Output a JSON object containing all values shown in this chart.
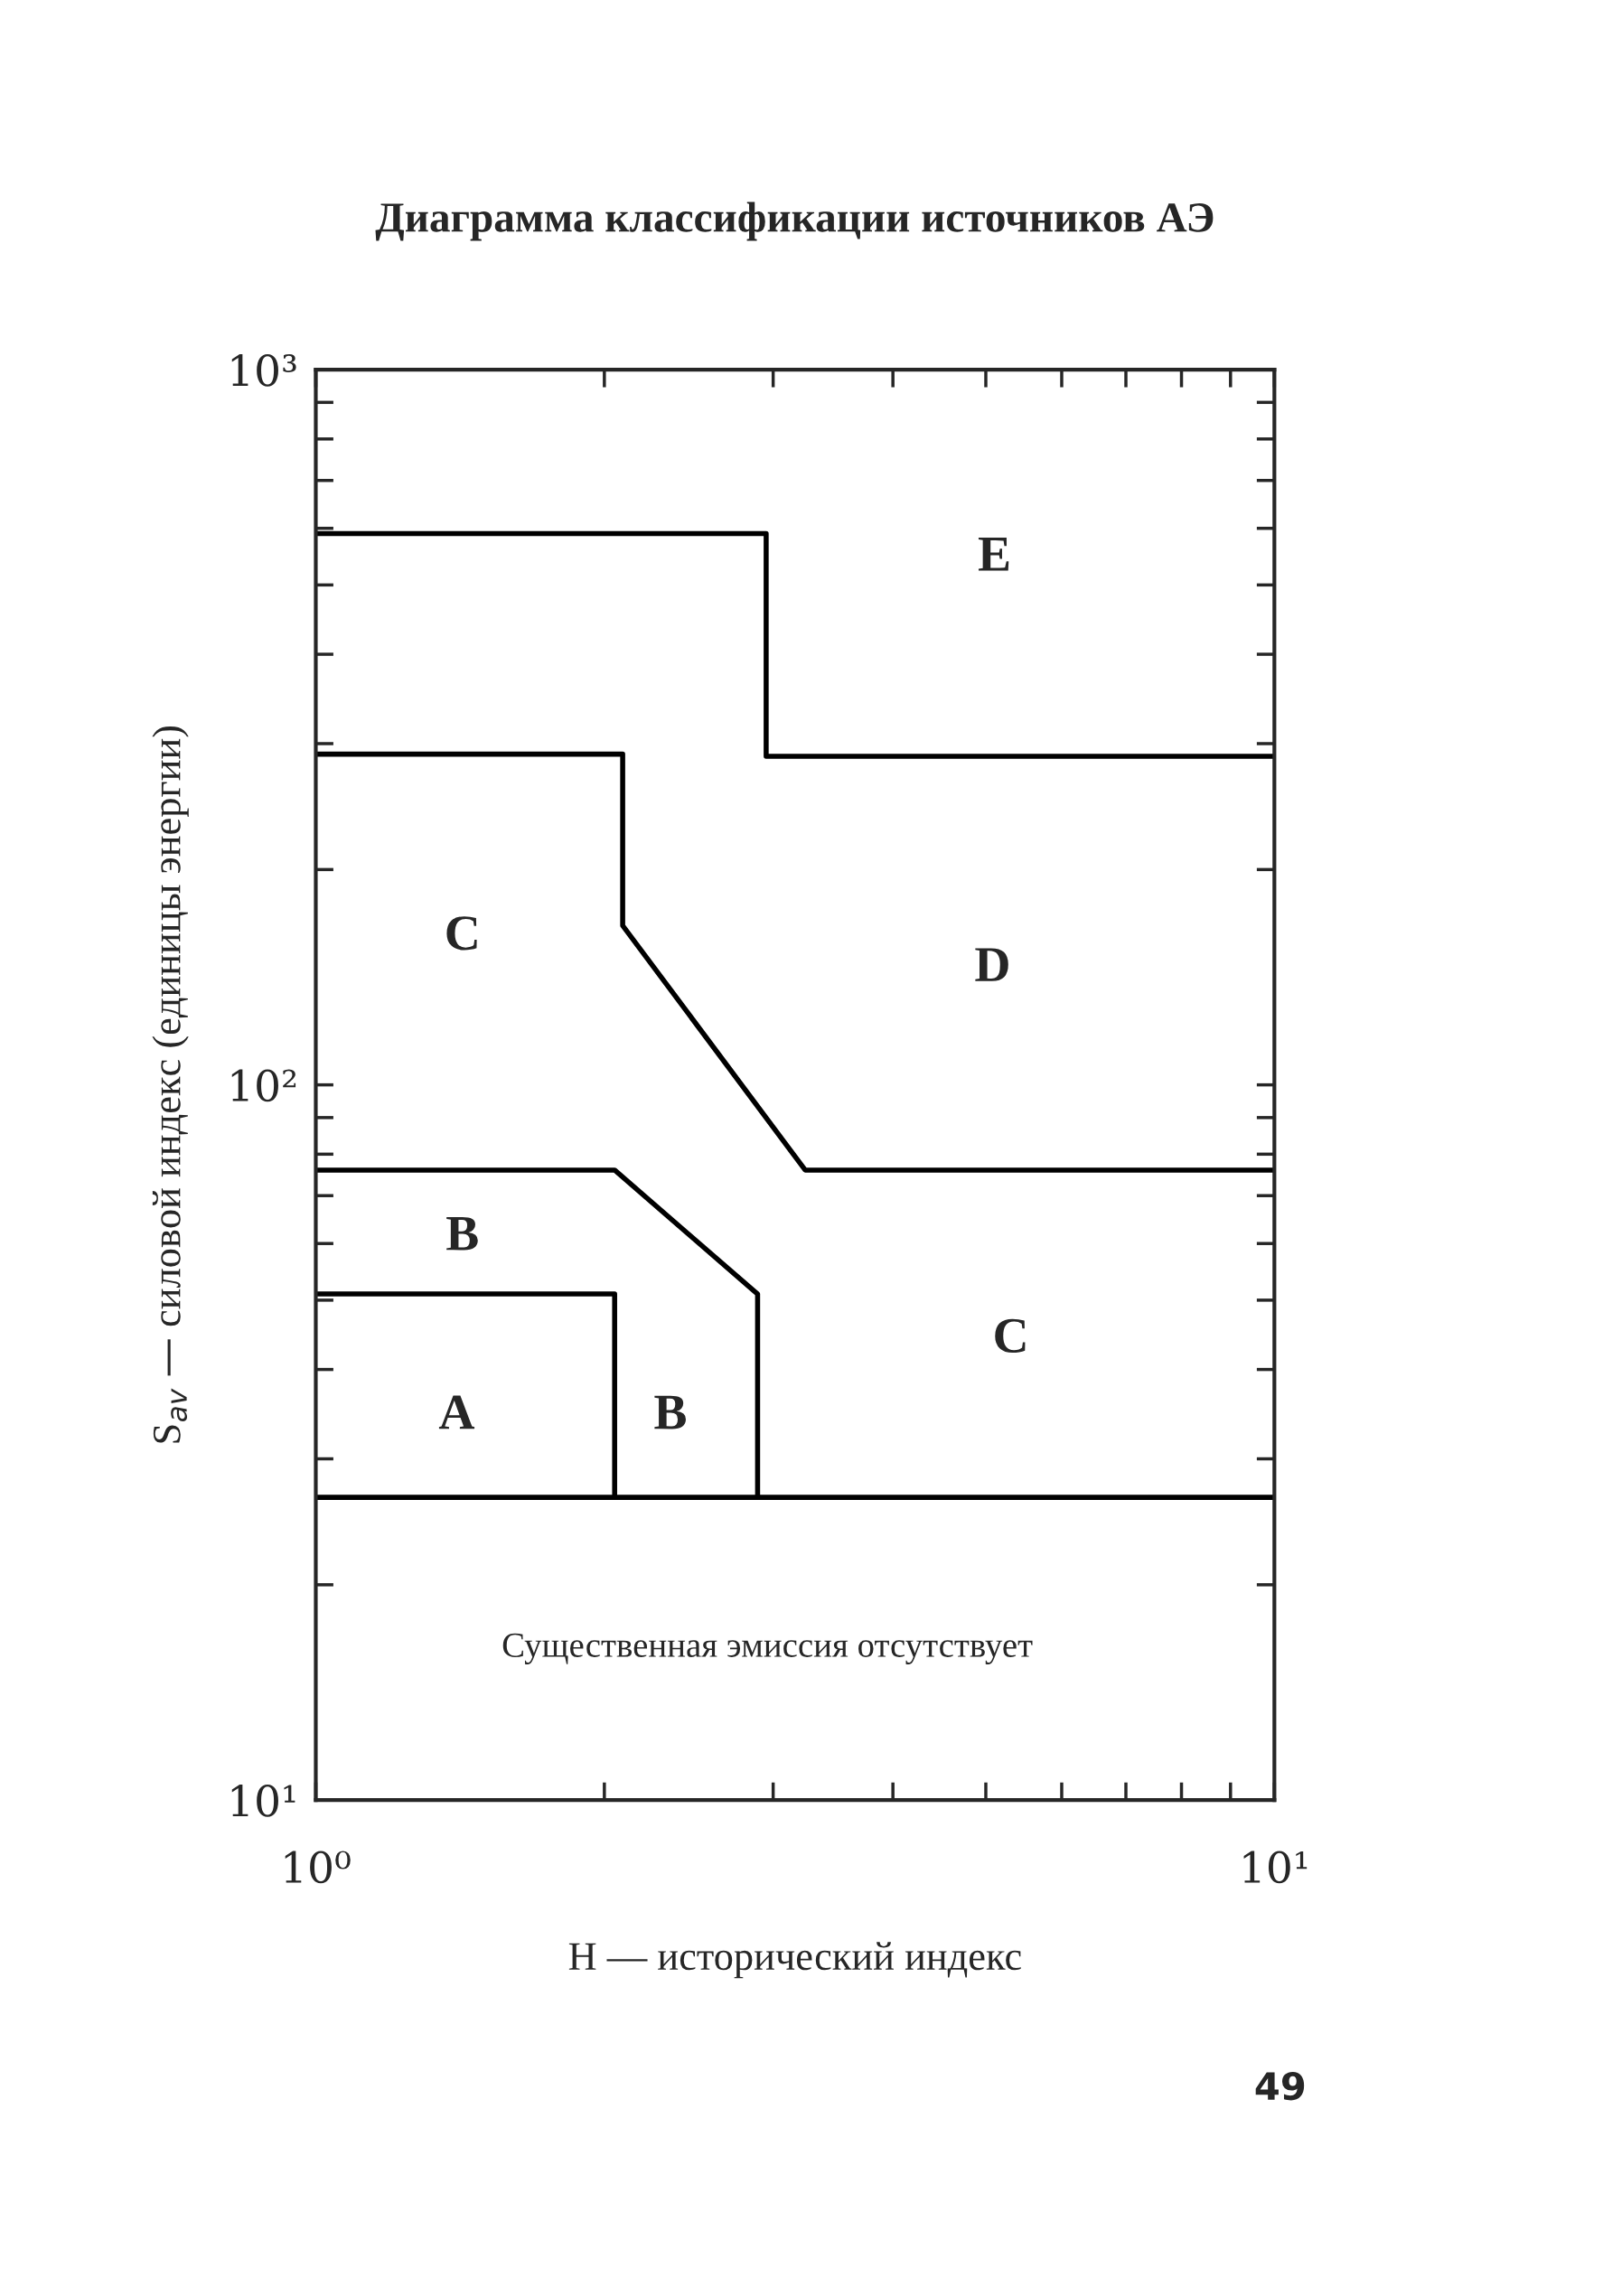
{
  "chart_data": {
    "type": "line",
    "title": "Диаграмма классификации источников АЭ",
    "xlabel": "H — исторический индекс",
    "ylabel": "S$_{av}$ — силовой индекс (единицы энергии)",
    "log": "xy",
    "xlim": [
      1,
      10
    ],
    "ylim": [
      10,
      1000
    ],
    "xticks": [
      {
        "value": 1,
        "label": "10⁰"
      },
      {
        "value": 10,
        "label": "10¹"
      }
    ],
    "yticks": [
      {
        "value": 10,
        "label": "10¹"
      },
      {
        "value": 100,
        "label": "10²"
      },
      {
        "value": 1000,
        "label": "10³"
      }
    ],
    "series": [
      {
        "color": "#000000",
        "x": [
          1,
          2.95,
          2.95,
          10
        ],
        "values": [
          590,
          590,
          288,
          288
        ]
      },
      {
        "color": "#000000",
        "x": [
          1,
          2.09,
          2.09,
          3.24,
          10
        ],
        "values": [
          290,
          290,
          167,
          76,
          76
        ]
      },
      {
        "color": "#000000",
        "x": [
          1,
          2.05,
          2.89,
          2.89
        ],
        "values": [
          76,
          76,
          51,
          26.5
        ]
      },
      {
        "color": "#000000",
        "x": [
          1,
          2.05,
          2.05
        ],
        "values": [
          51,
          51,
          26.5
        ]
      },
      {
        "color": "#000000",
        "x": [
          1,
          10
        ],
        "values": [
          26.5,
          26.5
        ]
      }
    ],
    "annotations": [
      "E",
      "C",
      "D",
      "B",
      "A",
      "B",
      "C",
      "Существенная эмиссия отсутствует",
      "49"
    ]
  }
}
